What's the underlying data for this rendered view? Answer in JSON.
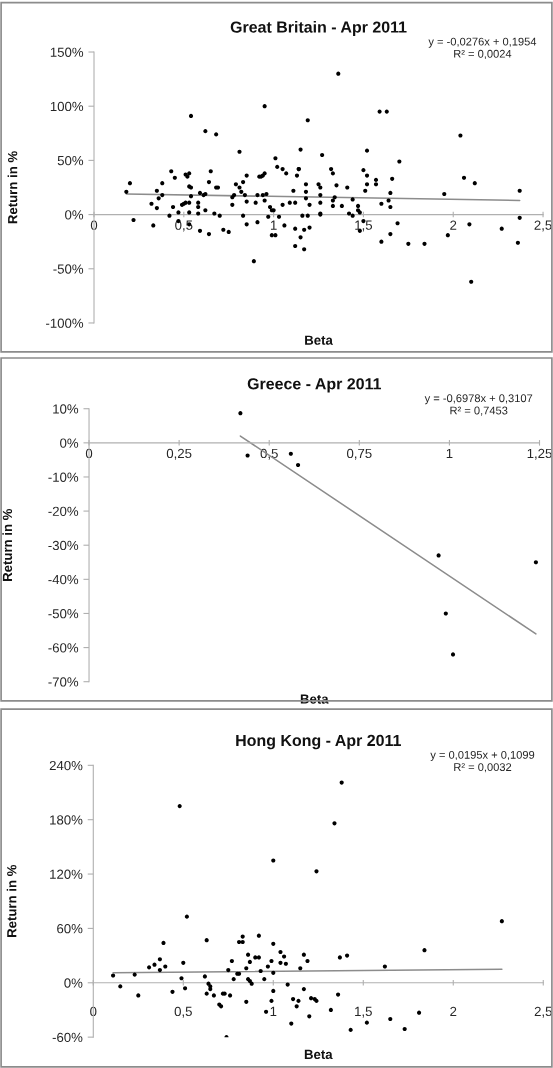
{
  "chart_data": [
    {
      "type": "scatter",
      "title": "Great Britain - Apr 2011",
      "xlabel": "Beta",
      "ylabel": "Return in %",
      "marker": "circle",
      "annotations": [
        "y = -0,0276x + 0,1954",
        "R² = 0,0024"
      ],
      "xlim": [
        0,
        2.5
      ],
      "ylim": [
        -100,
        150
      ],
      "xticks": [
        0,
        {
          "value": 0.5,
          "label": "0,5"
        },
        1,
        {
          "value": 1.5,
          "label": "1,5"
        },
        2,
        {
          "value": 2.5,
          "label": "2,5"
        }
      ],
      "yticks": [
        {
          "value": -100,
          "label": "-100%"
        },
        {
          "value": -50,
          "label": "-50%"
        },
        {
          "value": 0,
          "label": "0%"
        },
        {
          "value": 50,
          "label": "50%"
        },
        {
          "value": 100,
          "label": "100%"
        },
        {
          "value": 150,
          "label": "150%"
        }
      ],
      "series": [
        {
          "color": "#000000",
          "x": [
            0.18,
            0.2,
            0.22,
            0.32,
            0.33,
            0.35,
            0.35,
            0.36,
            0.38,
            0.38,
            0.42,
            0.43,
            0.44,
            0.45,
            0.47,
            0.47,
            0.49,
            0.5,
            0.51,
            0.51,
            0.52,
            0.53,
            0.53,
            0.53,
            0.53,
            0.53,
            0.54,
            0.54,
            0.54,
            0.58,
            0.58,
            0.58,
            0.59,
            0.59,
            0.61,
            0.62,
            0.62,
            0.62,
            0.64,
            0.64,
            0.65,
            0.67,
            0.68,
            0.68,
            0.69,
            0.7,
            0.72,
            0.75,
            0.77,
            0.77,
            0.78,
            0.79,
            0.81,
            0.81,
            0.82,
            0.83,
            0.83,
            0.84,
            0.85,
            0.85,
            0.85,
            0.89,
            0.9,
            0.91,
            0.91,
            0.92,
            0.93,
            0.94,
            0.94,
            0.95,
            0.95,
            0.96,
            0.95,
            0.97,
            0.98,
            0.99,
            0.99,
            1.0,
            1.01,
            1.01,
            1.02,
            1.03,
            1.05,
            1.05,
            1.06,
            1.07,
            1.09,
            1.11,
            1.12,
            1.12,
            1.12,
            1.13,
            1.14,
            1.14,
            1.15,
            1.15,
            1.16,
            1.17,
            1.17,
            1.18,
            1.18,
            1.18,
            1.19,
            1.19,
            1.2,
            1.2,
            1.25,
            1.26,
            1.36,
            1.27,
            1.26,
            1.26,
            1.26,
            1.26,
            1.32,
            1.33,
            1.33,
            1.33,
            1.34,
            1.35,
            1.38,
            1.41,
            1.42,
            1.44,
            1.44,
            1.47,
            1.47,
            1.48,
            1.48,
            1.5,
            1.5,
            1.51,
            1.52,
            1.52,
            1.52,
            1.57,
            1.57,
            1.59,
            1.6,
            1.6,
            1.63,
            1.64,
            1.65,
            1.65,
            1.65,
            1.66,
            1.69,
            1.7,
            1.75,
            1.84,
            1.95,
            1.97,
            2.04,
            2.06,
            2.09,
            2.1,
            2.12,
            2.27,
            2.36,
            2.37,
            2.37
          ],
          "values": [
            21,
            29,
            -5,
            10,
            -10,
            6,
            22,
            15,
            29,
            18,
            -1,
            40,
            7,
            34,
            -6,
            2,
            9,
            10,
            37,
            11,
            35,
            11,
            38,
            26,
            2,
            -9,
            91,
            17,
            25,
            7,
            11,
            1,
            -15,
            20,
            18,
            77,
            4,
            19,
            -18,
            30,
            40,
            1,
            74,
            25,
            25,
            -1,
            -14,
            -16,
            9,
            16,
            18,
            28,
            25,
            58,
            21,
            30,
            -1,
            18,
            -9,
            36,
            12,
            -43,
            11,
            -7,
            18,
            35,
            35,
            18,
            36,
            13,
            38,
            19,
            100,
            -2,
            7,
            4,
            -19,
            4,
            52,
            -19,
            44,
            -2,
            42,
            9,
            -10,
            38,
            11,
            22,
            -13,
            -29,
            11,
            36,
            42,
            42,
            60,
            -21,
            -1,
            -32,
            -14,
            28,
            21,
            15,
            -1,
            87,
            -12,
            9,
            28,
            11,
            130,
            55,
            25,
            18,
            1,
            0,
            42,
            38,
            13,
            8,
            16,
            27,
            8,
            25,
            1,
            14,
            -1,
            8,
            4,
            -15,
            2,
            41,
            -6,
            22,
            59,
            36,
            28,
            32,
            28,
            95,
            10,
            -25,
            95,
            13,
            7,
            20,
            -18,
            33,
            -8,
            49,
            -27,
            -27,
            19,
            -19,
            73,
            34,
            -9,
            -62,
            29,
            -13,
            -26,
            -3,
            22
          ]
        },
        {
          "type": "line",
          "marker": "none",
          "color": "#8c8c8c",
          "x": [
            0.18,
            2.37
          ],
          "values": [
            19,
            13
          ]
        }
      ]
    },
    {
      "type": "scatter",
      "title": "Greece - Apr 2011",
      "xlabel": "Beta",
      "ylabel": "Return in %",
      "marker": "circle",
      "annotations": [
        "y = -0,6978x + 0,3107",
        "R² = 0,7453"
      ],
      "xlim": [
        0,
        1.25
      ],
      "ylim": [
        -70,
        10
      ],
      "xticks": [
        0,
        {
          "value": 0.25,
          "label": "0,25"
        },
        {
          "value": 0.5,
          "label": "0,5"
        },
        {
          "value": 0.75,
          "label": "0,75"
        },
        1,
        {
          "value": 1.25,
          "label": "1,25"
        }
      ],
      "yticks": [
        {
          "value": -70,
          "label": "-70%"
        },
        {
          "value": -60,
          "label": "-60%"
        },
        {
          "value": -50,
          "label": "-50%"
        },
        {
          "value": -40,
          "label": "-40%"
        },
        {
          "value": -30,
          "label": "-30%"
        },
        {
          "value": -20,
          "label": "-20%"
        },
        {
          "value": -10,
          "label": "-10%"
        },
        {
          "value": 0,
          "label": "0%"
        },
        {
          "value": 10,
          "label": "10%"
        }
      ],
      "series": [
        {
          "color": "#000000",
          "x": [
            0.42,
            0.44,
            0.56,
            0.58,
            0.97,
            0.99,
            1.01,
            1.24
          ],
          "values": [
            8.7,
            -3.7,
            -3.2,
            -6.5,
            -33,
            -50,
            -62,
            -35
          ]
        },
        {
          "type": "line",
          "marker": "none",
          "color": "#8c8c8c",
          "x": [
            0.42,
            1.24
          ],
          "values": [
            2,
            -56
          ]
        }
      ]
    },
    {
      "type": "scatter",
      "title": "Hong Kong - Apr 2011",
      "xlabel": "Beta",
      "ylabel": "Return in %",
      "marker": "circle",
      "annotations": [
        "y = 0,0195x + 0,1099",
        "R² = 0,0032"
      ],
      "xlim": [
        0,
        2.5
      ],
      "ylim": [
        -60,
        240
      ],
      "xticks": [
        0,
        {
          "value": 0.5,
          "label": "0,5"
        },
        1,
        {
          "value": 1.5,
          "label": "1,5"
        },
        2,
        {
          "value": 2.5,
          "label": "2,5"
        }
      ],
      "yticks": [
        {
          "value": -60,
          "label": "-60%"
        },
        {
          "value": 0,
          "label": "0%"
        },
        {
          "value": 60,
          "label": "60%"
        },
        {
          "value": 120,
          "label": "120%"
        },
        {
          "value": 180,
          "label": "180%"
        },
        {
          "value": 240,
          "label": "240%"
        }
      ],
      "series": [
        {
          "color": "#000000",
          "x": [
            0.11,
            0.15,
            0.23,
            0.25,
            0.31,
            0.34,
            0.37,
            0.37,
            0.39,
            0.4,
            0.44,
            0.48,
            0.49,
            0.5,
            0.51,
            0.52,
            0.63,
            0.62,
            0.63,
            0.64,
            0.65,
            0.65,
            0.67,
            0.7,
            0.71,
            0.72,
            0.73,
            0.74,
            0.75,
            0.76,
            0.77,
            0.78,
            0.8,
            0.81,
            0.81,
            0.83,
            0.83,
            0.85,
            0.85,
            0.86,
            0.86,
            0.87,
            0.87,
            0.88,
            0.9,
            0.92,
            0.92,
            0.93,
            0.95,
            0.96,
            0.97,
            0.99,
            1.0,
            1.0,
            1.0,
            1.0,
            0.99,
            1.04,
            1.06,
            1.04,
            1.07,
            1.08,
            1.1,
            1.11,
            1.13,
            1.14,
            1.15,
            1.17,
            1.17,
            1.19,
            1.2,
            1.21,
            1.23,
            1.24,
            1.24,
            1.38,
            1.34,
            1.37,
            1.41,
            1.36,
            1.32,
            1.43,
            1.52,
            1.62,
            1.65,
            1.73,
            1.81,
            1.84,
            2.27
          ],
          "values": [
            8,
            -4,
            9,
            -14,
            17,
            20,
            14,
            26,
            44,
            18,
            -10,
            195,
            5,
            22,
            -6,
            73,
            47,
            7,
            -12,
            -1,
            -4,
            -7,
            -14,
            -24,
            -26,
            -12,
            -12,
            -60,
            14,
            -14,
            24,
            4,
            10,
            45,
            10,
            45,
            51,
            -21,
            16,
            31,
            4,
            23,
            2,
            -1,
            28,
            52,
            28,
            13,
            4,
            -32,
            18,
            24,
            43,
            11,
            135,
            -9,
            -20,
            34,
            29,
            22,
            21,
            -2,
            -45,
            -18,
            -26,
            -20,
            16,
            31,
            -7,
            24,
            -37,
            -17,
            -18,
            -20,
            123,
            221,
            176,
            28,
            30,
            -13,
            -30,
            -52,
            -44,
            18,
            -40,
            -51,
            -33,
            36,
            68
          ]
        },
        {
          "type": "line",
          "marker": "none",
          "color": "#8c8c8c",
          "x": [
            0.11,
            2.27
          ],
          "values": [
            11,
            15
          ]
        }
      ]
    }
  ]
}
